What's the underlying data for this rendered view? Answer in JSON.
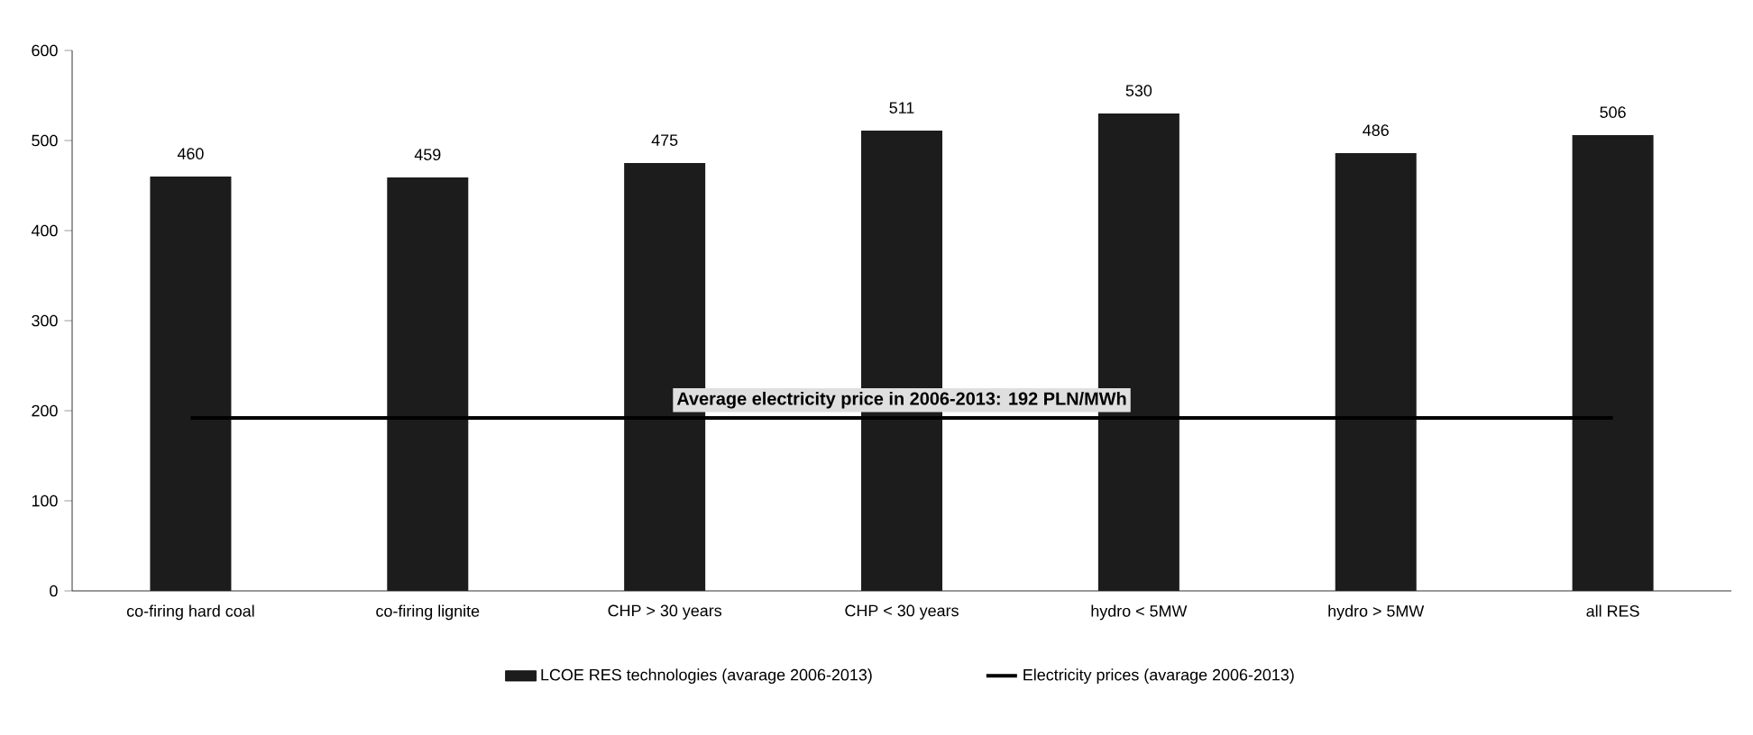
{
  "chart_data": {
    "type": "bar",
    "categories": [
      "co-firing hard coal",
      "co-firing lignite",
      "CHP > 30 years",
      "CHP < 30 years",
      "hydro < 5MW",
      "hydro > 5MW",
      "all RES"
    ],
    "series": [
      {
        "name": "LCOE RES technologies (avarage 2006-2013)",
        "color": "#1c1c1c",
        "values": [
          460,
          459,
          475,
          511,
          530,
          486,
          506
        ],
        "value_labels": [
          "460",
          "459",
          "475",
          "511",
          "530",
          "486",
          "506"
        ]
      },
      {
        "name": "Electricity prices (avarage 2006-2013)",
        "type": "line",
        "color": "#000000",
        "values": [
          192,
          192,
          192,
          192,
          192,
          192,
          192
        ]
      }
    ],
    "annotations": [
      "Average electricity price in 2006-2013:  192 PLN/MWh"
    ],
    "ylim": [
      0,
      600
    ],
    "yticks": [
      0,
      100,
      200,
      300,
      400,
      500,
      600
    ],
    "grid": false,
    "legend": "bottom",
    "marker": "none",
    "line_style": "solid"
  }
}
